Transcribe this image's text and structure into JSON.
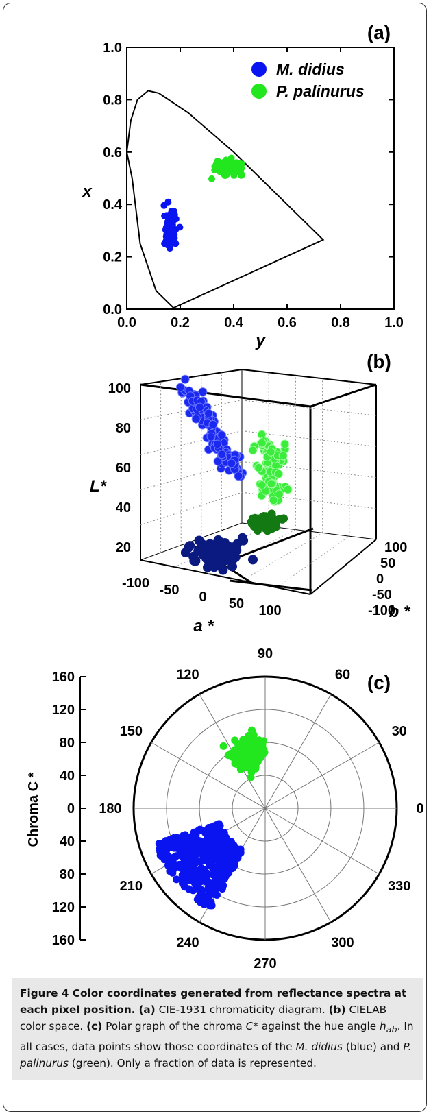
{
  "figure": {
    "caption": {
      "title": "Figure 4 Color coordinates generated from reflectance spectra at each pixel position.",
      "a_tag": "(a)",
      "a_text": " CIE-1931 chromaticity diagram. ",
      "b_tag": "(b)",
      "b_text": " CIELAB color space. ",
      "c_tag": "(c)",
      "c_text1": " Polar graph of the chroma ",
      "c_var1": "C*",
      "c_text2": " against the hue angle ",
      "c_var2": "h",
      "c_var2_sub": "ab",
      "c_text3": ". In all cases, data points show those coordinates of the ",
      "sp1": "M. didius",
      "t4": " (blue) and ",
      "sp2": "P. palinurus",
      "t5": " (green). Only a fraction of data is represented."
    }
  },
  "chart_data": [
    {
      "panel": "(a)",
      "type": "scatter",
      "title": "",
      "xlabel": "y",
      "ylabel": "x",
      "xlim": [
        0,
        1.0
      ],
      "ylim": [
        0,
        1.0
      ],
      "xticks": [
        "0.0",
        "0.2",
        "0.4",
        "0.6",
        "0.8",
        "1.0"
      ],
      "yticks": [
        "0.0",
        "0.2",
        "0.4",
        "0.6",
        "0.8",
        "1.0"
      ],
      "legend_position": "top-right",
      "locus": [
        [
          0.175,
          0.005
        ],
        [
          0.11,
          0.07
        ],
        [
          0.05,
          0.25
        ],
        [
          0.02,
          0.5
        ],
        [
          0.0,
          0.6
        ],
        [
          0.015,
          0.72
        ],
        [
          0.04,
          0.8
        ],
        [
          0.08,
          0.834
        ],
        [
          0.12,
          0.825
        ],
        [
          0.23,
          0.75
        ],
        [
          0.4,
          0.6
        ],
        [
          0.6,
          0.4
        ],
        [
          0.735,
          0.265
        ],
        [
          0.175,
          0.005
        ]
      ],
      "series": [
        {
          "name": "M. didius",
          "color": "#0a14f0",
          "center": [
            0.16,
            0.3
          ],
          "spread": [
            0.018,
            0.06
          ],
          "count": 140
        },
        {
          "name": "P. palinurus",
          "color": "#22e61e",
          "center": [
            0.385,
            0.54
          ],
          "spread": [
            0.045,
            0.022
          ],
          "count": 110
        }
      ]
    },
    {
      "panel": "(b)",
      "type": "scatter",
      "title": "",
      "xlabel": "a *",
      "ylabel": "L*",
      "zlabel": "b *",
      "xlim": [
        -100,
        120
      ],
      "ylim": [
        0,
        100
      ],
      "zlim": [
        -120,
        100
      ],
      "xticks": [
        "-100",
        "-50",
        "0",
        "50",
        "100"
      ],
      "yticks": [
        "20",
        "40",
        "60",
        "80",
        "100"
      ],
      "zticks": [
        "-100",
        "-50",
        "0",
        "50",
        "100"
      ],
      "series": [
        {
          "name": "M. didius",
          "color": "#1a28f0",
          "projection_color": "#0b1a80",
          "a_range": [
            -20,
            20
          ],
          "b_range": [
            -80,
            -60
          ],
          "L_range": [
            55,
            100
          ]
        },
        {
          "name": "P. palinurus",
          "color": "#3cec3c",
          "projection_color": "#137a13",
          "a_range": [
            -60,
            -30
          ],
          "b_range": [
            30,
            50
          ],
          "L_range": [
            40,
            70
          ]
        }
      ]
    },
    {
      "panel": "(c)",
      "type": "scatter",
      "title": "",
      "ylabel": "Chroma C *",
      "rlim": [
        0,
        160
      ],
      "radial_ticks": [
        "160",
        "120",
        "80",
        "40",
        "0",
        "40",
        "80",
        "120",
        "160"
      ],
      "angle_ticks": [
        "0",
        "30",
        "60",
        "90",
        "120",
        "150",
        "180",
        "210",
        "240",
        "270",
        "300",
        "330"
      ],
      "series": [
        {
          "name": "M. didius",
          "color": "#0a14f0",
          "hue_range_deg": [
            200,
            240
          ],
          "chroma_range": [
            50,
            140
          ]
        },
        {
          "name": "P. palinurus",
          "color": "#22e61e",
          "hue_range_deg": [
            95,
            120
          ],
          "chroma_range": [
            50,
            90
          ]
        }
      ]
    }
  ]
}
